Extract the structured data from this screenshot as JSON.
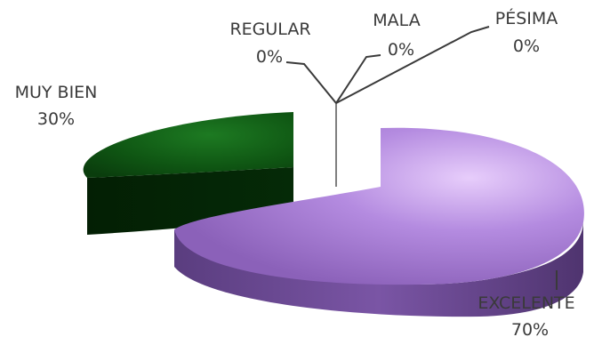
{
  "chart_data": {
    "type": "pie",
    "style": "3d-exploded",
    "categories": [
      "EXCELENTE",
      "MUY BIEN",
      "REGULAR",
      "MALA",
      "PÉSIMA"
    ],
    "values": [
      70,
      30,
      0,
      0,
      0
    ],
    "percent_labels": [
      "70%",
      "30%",
      "0%",
      "0%",
      "0%"
    ],
    "colors": [
      "#9b6fc4",
      "#0f4d12",
      "#7a7a7a",
      "#7a7a7a",
      "#7a7a7a"
    ],
    "title": "",
    "legend": "none",
    "labels": [
      {
        "category": "EXCELENTE",
        "percent": "70%"
      },
      {
        "category": "MUY BIEN",
        "percent": "30%"
      },
      {
        "category": "REGULAR",
        "percent": "0%"
      },
      {
        "category": "MALA",
        "percent": "0%"
      },
      {
        "category": "PÉSIMA",
        "percent": "0%"
      }
    ]
  }
}
